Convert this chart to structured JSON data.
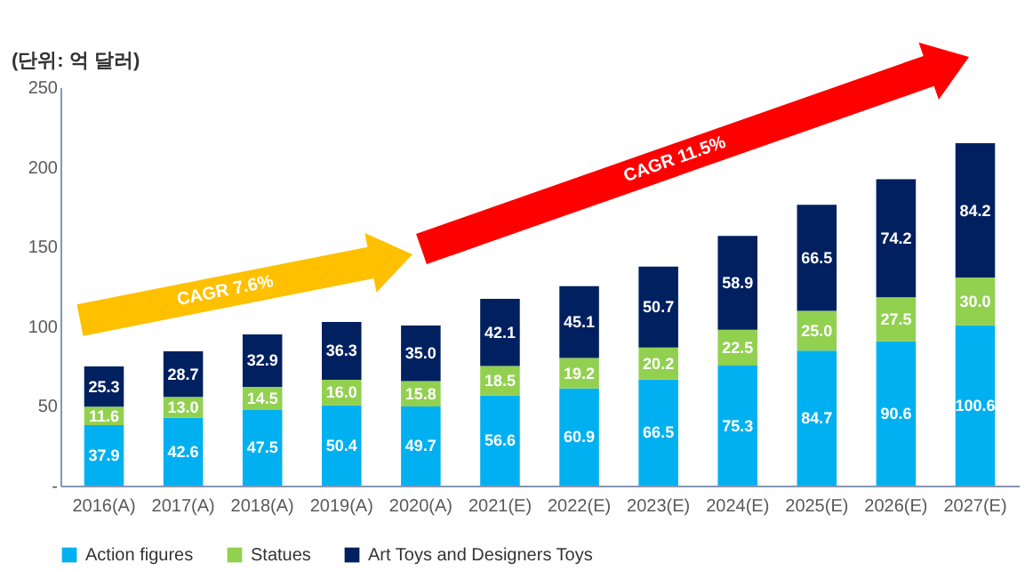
{
  "chart_data": {
    "type": "bar",
    "stacked": true,
    "legend": "bottom",
    "grid": false,
    "ylabel": "(단위: 억 달러)",
    "categories": [
      "2016(A)",
      "2017(A)",
      "2018(A)",
      "2019(A)",
      "2020(A)",
      "2021(E)",
      "2022(E)",
      "2023(E)",
      "2024(E)",
      "2025(E)",
      "2026(E)",
      "2027(E)"
    ],
    "ylim": [
      0,
      250
    ],
    "yticks": [
      {
        "value": 0,
        "label": "-"
      },
      50,
      100,
      150,
      200,
      250
    ],
    "series": [
      {
        "name": "Action figures",
        "color": "#00b0f0",
        "values": [
          37.9,
          42.6,
          47.5,
          50.4,
          49.7,
          56.6,
          60.9,
          66.5,
          75.3,
          84.7,
          90.6,
          100.6
        ],
        "value_labels": [
          "37.9",
          "42.6",
          "47.5",
          "50.4",
          "49.7",
          "56.6",
          "60.9",
          "66.5",
          "75.3",
          "84.7",
          "90.6",
          "100.6"
        ]
      },
      {
        "name": "Statues",
        "color": "#92d050",
        "values": [
          11.6,
          13.0,
          14.5,
          16.0,
          15.8,
          18.5,
          19.2,
          20.2,
          22.5,
          25.0,
          27.5,
          30.0
        ],
        "value_labels": [
          "11.6",
          "13.0",
          "14.5",
          "16.0",
          "15.8",
          "18.5",
          "19.2",
          "20.2",
          "22.5",
          "25.0",
          "27.5",
          "30.0"
        ]
      },
      {
        "name": "Art Toys and Designers Toys",
        "color": "#002060",
        "values": [
          25.3,
          28.7,
          32.9,
          36.3,
          35.0,
          42.1,
          45.1,
          50.7,
          58.9,
          66.5,
          74.2,
          84.2
        ],
        "value_labels": [
          "25.3",
          "28.7",
          "32.9",
          "36.3",
          "35.0",
          "42.1",
          "45.1",
          "50.7",
          "58.9",
          "66.5",
          "74.2",
          "84.2"
        ]
      }
    ],
    "annotations": [
      "CAGR 7.6%",
      "CAGR 11.5%"
    ]
  }
}
